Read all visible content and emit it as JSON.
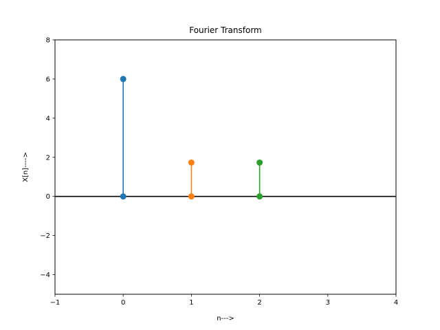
{
  "chart_data": {
    "type": "stem",
    "title": "Fourier Transform",
    "xlabel": "n--->",
    "ylabel": "X[n]---->",
    "xlim": [
      -1,
      4
    ],
    "ylim": [
      -5,
      8
    ],
    "x_ticks": [
      -1,
      0,
      1,
      2,
      3,
      4
    ],
    "y_ticks": [
      -4,
      -2,
      0,
      2,
      4,
      6,
      8
    ],
    "x_tick_labels": [
      "−1",
      "0",
      "1",
      "2",
      "3",
      "4"
    ],
    "y_tick_labels": [
      "−4",
      "−2",
      "0",
      "2",
      "4",
      "6",
      "8"
    ],
    "grid": false,
    "baseline": 0,
    "series": [
      {
        "x": 0,
        "y": 6.0,
        "color": "#1f77b4"
      },
      {
        "x": 1,
        "y": 1.73,
        "color": "#ff7f0e"
      },
      {
        "x": 2,
        "y": 1.73,
        "color": "#2ca02c"
      }
    ],
    "baseline_color": "#000000"
  }
}
